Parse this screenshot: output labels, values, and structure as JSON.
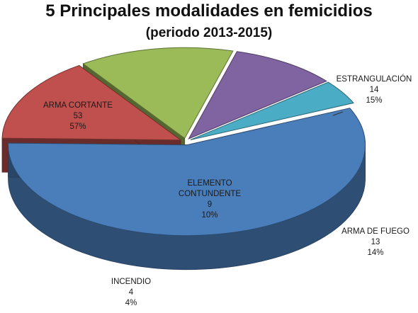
{
  "title": "5 Principales modalidades en femicidios",
  "subtitle": "(periodo 2013-2015)",
  "chart_data": {
    "type": "pie",
    "title": "5 Principales modalidades en femicidios",
    "subtitle": "(periodo 2013-2015)",
    "style": "3d-exploded",
    "slices": [
      {
        "name": "ARMA CORTANTE",
        "value": 53,
        "percent": "57%",
        "color": "#4a7ebb"
      },
      {
        "name": "ESTRANGULACIÓN",
        "value": 14,
        "percent": "15%",
        "color": "#c0504d"
      },
      {
        "name": "ARMA DE FUEGO",
        "value": 13,
        "percent": "14%",
        "color": "#9bbb59"
      },
      {
        "name": "ELEMENTO CONTUNDENTE",
        "value": 9,
        "percent": "10%",
        "color": "#8064a2"
      },
      {
        "name": "INCENDIO",
        "value": 4,
        "percent": "4%",
        "color": "#4bacc6"
      }
    ]
  }
}
